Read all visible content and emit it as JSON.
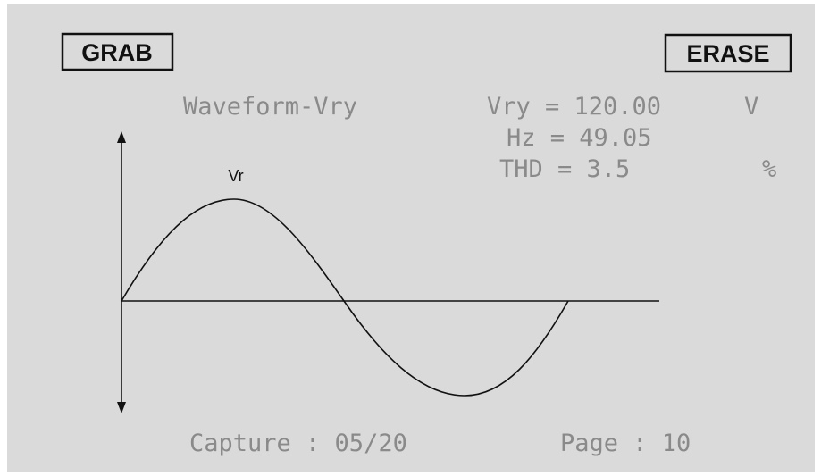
{
  "buttons": {
    "grab": "GRAB",
    "erase": "ERASE"
  },
  "title": "Waveform-Vry",
  "readings": [
    {
      "text": "Vry = 120.00",
      "unit": "V"
    },
    {
      "text": "Hz = 49.05"
    },
    {
      "text": "THD = 3.5",
      "unit": "%"
    }
  ],
  "waveform": {
    "label": "Vr"
  },
  "footer": {
    "capture": "Capture : 05/20",
    "page": "Page : 10"
  }
}
